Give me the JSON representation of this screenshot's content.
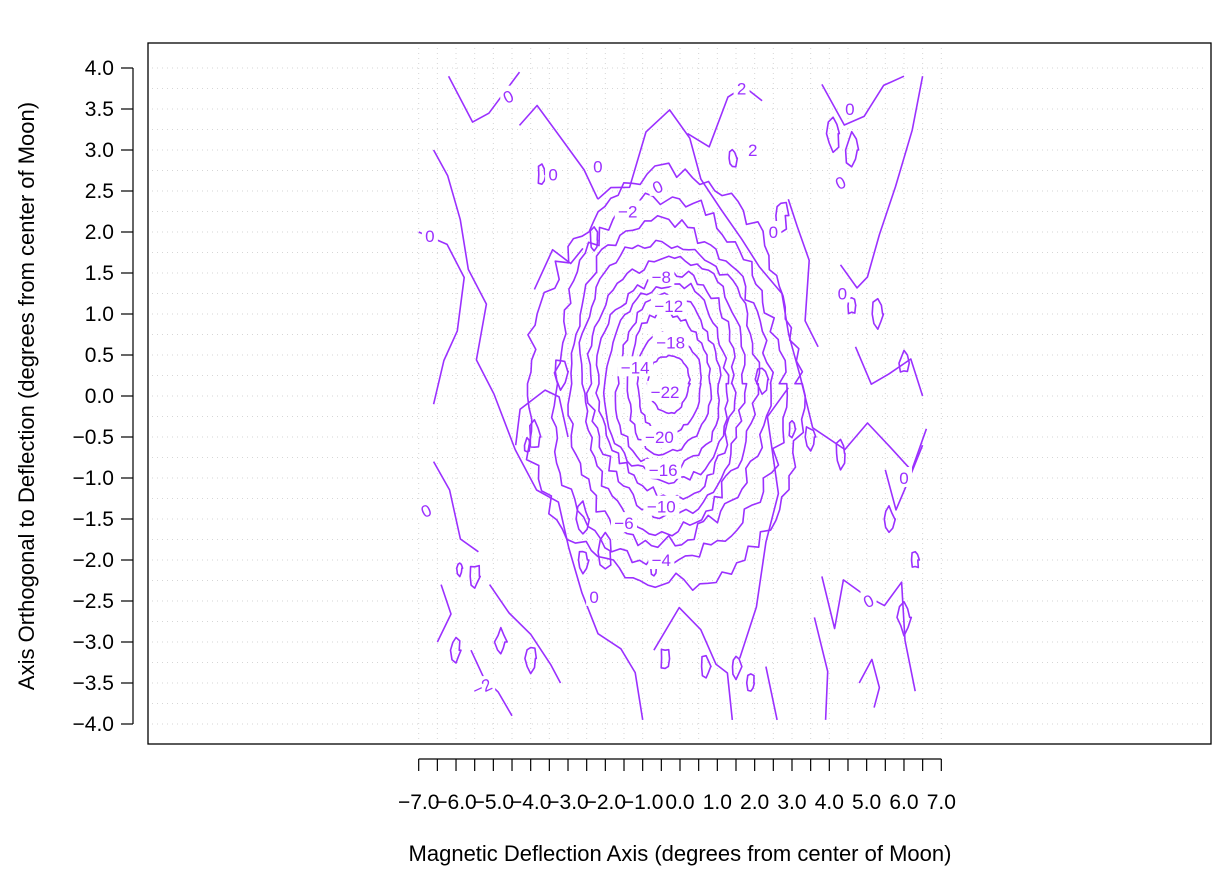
{
  "chart_data": {
    "type": "contour",
    "xlabel": "Magnetic Deflection Axis (degrees from center of Moon)",
    "ylabel": "Axis Orthogonal to Deflection (degrees from center of Moon)",
    "xlim": [
      -7.0,
      7.0
    ],
    "ylim": [
      -4.0,
      4.0
    ],
    "x_ticks": [
      "−7.0",
      "−6.0",
      "−5.0",
      "−4.0",
      "−3.0",
      "−2.0",
      "−1.0",
      "0.0",
      "1.0",
      "2.0",
      "3.0",
      "4.0",
      "5.0",
      "6.0",
      "7.0"
    ],
    "x_tick_values": [
      -7,
      -6,
      -5,
      -4,
      -3,
      -2,
      -1,
      0,
      1,
      2,
      3,
      4,
      5,
      6,
      7
    ],
    "x_minor_ticks": [
      -6.5,
      -5.5,
      -4.5,
      -3.5,
      -2.5,
      -1.5,
      -0.5,
      0.5,
      1.5,
      2.5,
      3.5,
      4.5,
      5.5,
      6.5
    ],
    "y_ticks": [
      "4.0",
      "3.5",
      "3.0",
      "2.5",
      "2.0",
      "1.5",
      "1.0",
      "0.5",
      "0.0",
      "−0.5",
      "−1.0",
      "−1.5",
      "−2.0",
      "−2.5",
      "−3.0",
      "−3.5",
      "−4.0"
    ],
    "y_tick_values": [
      4,
      3.5,
      3,
      2.5,
      2,
      1.5,
      1,
      0.5,
      0,
      -0.5,
      -1,
      -1.5,
      -2,
      -2.5,
      -3,
      -3.5,
      -4
    ],
    "grid": true,
    "line_color": "#9b30ff",
    "levels": [
      -22,
      -20,
      -18,
      -16,
      -14,
      -12,
      -10,
      -8,
      -6,
      -4,
      -2,
      0
    ],
    "moon_shadow_center": [
      -0.3,
      0.15
    ],
    "contours": [
      {
        "level": -22,
        "rx": 0.55,
        "ry": 0.35,
        "label": "−22",
        "label_pos": [
          -0.4,
          0.05
        ]
      },
      {
        "level": -20,
        "rx": 0.85,
        "ry": 0.62,
        "label": "−20",
        "label_pos": [
          -0.55,
          -0.5
        ]
      },
      {
        "level": -18,
        "rx": 1.1,
        "ry": 0.85,
        "label": "−18",
        "label_pos": [
          -0.25,
          0.65
        ]
      },
      {
        "level": -16,
        "rx": 1.35,
        "ry": 1.05,
        "label": "−16",
        "label_pos": [
          -0.45,
          -0.9
        ]
      },
      {
        "level": -14,
        "rx": 1.6,
        "ry": 1.2,
        "label": "−14",
        "label_pos": [
          -1.2,
          0.35
        ]
      },
      {
        "level": -12,
        "rx": 1.8,
        "ry": 1.35,
        "label": "−12",
        "label_pos": [
          -0.3,
          1.1
        ]
      },
      {
        "level": -10,
        "rx": 2.05,
        "ry": 1.55,
        "label": "−10",
        "label_pos": [
          -0.5,
          -1.35
        ]
      },
      {
        "level": -8,
        "rx": 2.3,
        "ry": 1.75,
        "label": "−8",
        "label_pos": [
          -0.5,
          1.45
        ]
      },
      {
        "level": -6,
        "rx": 2.6,
        "ry": 1.95,
        "label": "−6",
        "label_pos": [
          -1.5,
          -1.55
        ]
      },
      {
        "level": -4,
        "rx": 3.0,
        "ry": 2.2,
        "label": "−4",
        "label_pos": [
          -0.5,
          -2.0
        ]
      },
      {
        "level": -2,
        "rx": 3.6,
        "ry": 2.5,
        "label": "−2",
        "label_pos": [
          -1.4,
          2.25
        ]
      }
    ],
    "zero_labels": [
      {
        "label": "0",
        "pos": [
          -4.6,
          3.65
        ]
      },
      {
        "label": "0",
        "pos": [
          -3.4,
          2.7
        ]
      },
      {
        "label": "0",
        "pos": [
          -2.2,
          2.8
        ]
      },
      {
        "label": "0",
        "pos": [
          -0.6,
          2.55
        ]
      },
      {
        "label": "0",
        "pos": [
          -6.7,
          1.95
        ]
      },
      {
        "label": "0",
        "pos": [
          -2.3,
          -2.45
        ]
      },
      {
        "label": "0",
        "pos": [
          -6.8,
          -1.4
        ]
      },
      {
        "label": "0",
        "pos": [
          2.5,
          2.0
        ]
      },
      {
        "label": "0",
        "pos": [
          4.55,
          3.5
        ]
      },
      {
        "label": "0",
        "pos": [
          4.3,
          2.6
        ]
      },
      {
        "label": "0",
        "pos": [
          4.35,
          1.25
        ]
      },
      {
        "label": "0",
        "pos": [
          6.0,
          -1.0
        ]
      },
      {
        "label": "0",
        "pos": [
          5.05,
          -2.5
        ]
      },
      {
        "label": "2",
        "pos": [
          1.95,
          3.0
        ]
      },
      {
        "label": "2",
        "pos": [
          1.65,
          3.75
        ]
      },
      {
        "label": "−2",
        "pos": [
          -5.3,
          -3.55
        ]
      }
    ]
  }
}
